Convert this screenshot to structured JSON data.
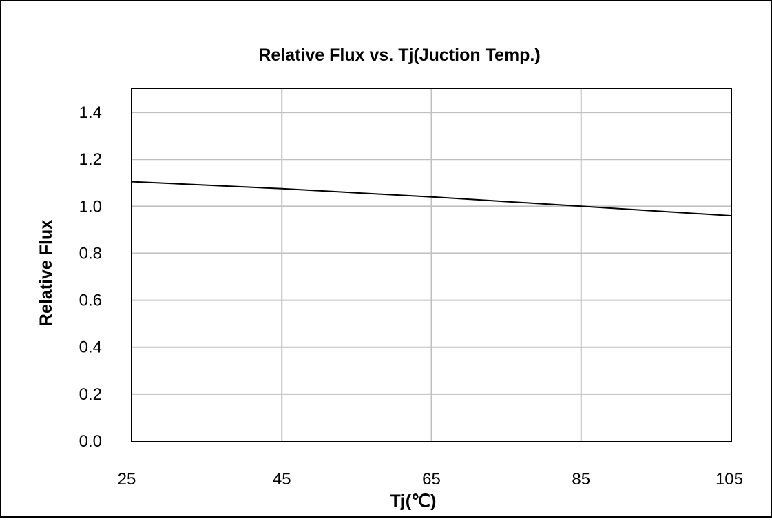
{
  "chart_data": {
    "type": "line",
    "title": "Relative Flux vs. Tj(Juction Temp.)",
    "xlabel": "Tj(℃)",
    "ylabel": "Relative Flux",
    "xlim": [
      25,
      105
    ],
    "ylim": [
      0,
      1.5
    ],
    "x_ticks": [
      "25",
      "45",
      "65",
      "85",
      "105"
    ],
    "x_tick_values": [
      25,
      45,
      65,
      85,
      105
    ],
    "y_ticks": [
      "0.0",
      "0.2",
      "0.4",
      "0.6",
      "0.8",
      "1.0",
      "1.2",
      "1.4"
    ],
    "y_tick_values": [
      0,
      0.2,
      0.4,
      0.6,
      0.8,
      1.0,
      1.2,
      1.4
    ],
    "grid": true,
    "series": [
      {
        "x": [
          25,
          45,
          65,
          85,
          105
        ],
        "y": [
          1.105,
          1.075,
          1.04,
          1.0,
          0.96
        ],
        "color": "#000000"
      }
    ]
  }
}
